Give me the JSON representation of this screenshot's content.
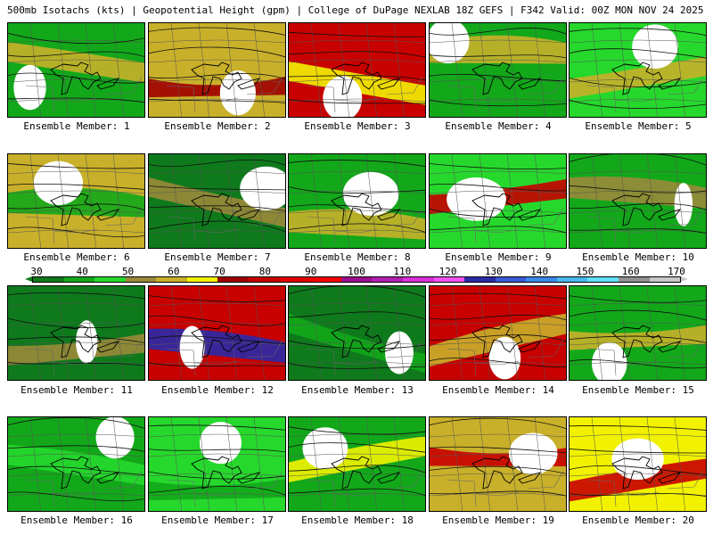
{
  "title": "500mb Isotachs (kts) | Geopotential Height (gpm) | College of DuPage NEXLAB   18Z GEFS | F342 Valid: 00Z MON NOV 24 2025",
  "colorbar": {
    "labels": [
      "30",
      "40",
      "50",
      "60",
      "70",
      "80",
      "90",
      "100",
      "110",
      "120",
      "130",
      "140",
      "150",
      "160",
      "170"
    ],
    "colors": [
      "#0e7a1c",
      "#12a81a",
      "#26d82c",
      "#9a8a3a",
      "#c9b02a",
      "#f2f200",
      "#a00000",
      "#c80000",
      "#e00000",
      "#f80000",
      "#9a1090",
      "#b020b0",
      "#d830d8",
      "#f050f0",
      "#2a2aa8",
      "#3a5ad8",
      "#3a8ae8",
      "#48b8f0",
      "#60e0f8",
      "#909090",
      "#c8c8c8"
    ],
    "unit": "kts"
  },
  "panels": [
    {
      "label": "Ensemble Member: 1",
      "member": 1,
      "dominant": "#12a81a",
      "accent": "#c9b02a"
    },
    {
      "label": "Ensemble Member: 2",
      "member": 2,
      "dominant": "#c9b02a",
      "accent": "#a00000"
    },
    {
      "label": "Ensemble Member: 3",
      "member": 3,
      "dominant": "#c80000",
      "accent": "#f2f200"
    },
    {
      "label": "Ensemble Member: 4",
      "member": 4,
      "dominant": "#12a81a",
      "accent": "#c9b02a"
    },
    {
      "label": "Ensemble Member: 5",
      "member": 5,
      "dominant": "#26d82c",
      "accent": "#c9b02a"
    },
    {
      "label": "Ensemble Member: 6",
      "member": 6,
      "dominant": "#c9b02a",
      "accent": "#12a81a"
    },
    {
      "label": "Ensemble Member: 7",
      "member": 7,
      "dominant": "#0e7a1c",
      "accent": "#9a8a3a"
    },
    {
      "label": "Ensemble Member: 8",
      "member": 8,
      "dominant": "#12a81a",
      "accent": "#c9b02a"
    },
    {
      "label": "Ensemble Member: 9",
      "member": 9,
      "dominant": "#26d82c",
      "accent": "#c80000"
    },
    {
      "label": "Ensemble Member: 10",
      "member": 10,
      "dominant": "#12a81a",
      "accent": "#9a8a3a"
    },
    {
      "label": "Ensemble Member: 11",
      "member": 11,
      "dominant": "#0e7a1c",
      "accent": "#9a8a3a"
    },
    {
      "label": "Ensemble Member: 12",
      "member": 12,
      "dominant": "#c80000",
      "accent": "#2a2aa8"
    },
    {
      "label": "Ensemble Member: 13",
      "member": 13,
      "dominant": "#0e7a1c",
      "accent": "#12a81a"
    },
    {
      "label": "Ensemble Member: 14",
      "member": 14,
      "dominant": "#c80000",
      "accent": "#c9b02a"
    },
    {
      "label": "Ensemble Member: 15",
      "member": 15,
      "dominant": "#12a81a",
      "accent": "#c9b02a"
    },
    {
      "label": "Ensemble Member: 16",
      "member": 16,
      "dominant": "#12a81a",
      "accent": "#26d82c"
    },
    {
      "label": "Ensemble Member: 17",
      "member": 17,
      "dominant": "#26d82c",
      "accent": "#12a81a"
    },
    {
      "label": "Ensemble Member: 18",
      "member": 18,
      "dominant": "#12a81a",
      "accent": "#f2f200"
    },
    {
      "label": "Ensemble Member: 19",
      "member": 19,
      "dominant": "#c9b02a",
      "accent": "#c80000"
    },
    {
      "label": "Ensemble Member: 20",
      "member": 20,
      "dominant": "#f2f200",
      "accent": "#c80000"
    }
  ]
}
